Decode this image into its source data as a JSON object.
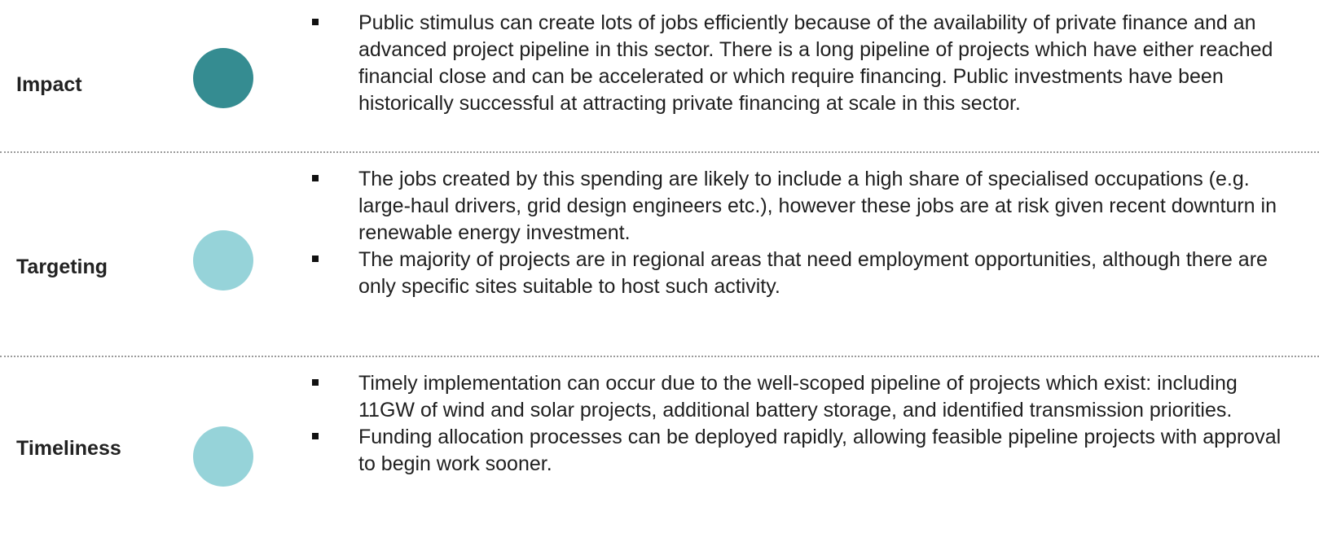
{
  "rows": [
    {
      "label": "Impact",
      "bullets": [
        "Public stimulus can create lots of jobs efficiently because of the availability of private finance and an advanced project pipeline in this sector. There is a long pipeline of projects which have either reached financial close and can be accelerated or which require financing. Public investments have been historically successful at attracting private financing at scale in this sector."
      ]
    },
    {
      "label": "Targeting",
      "bullets": [
        "The jobs created by this spending are likely to include a high share of specialised occupations (e.g. large-haul drivers, grid design engineers etc.), however these jobs are at risk given recent downturn in renewable energy investment.",
        "The majority of projects are in regional areas that need employment opportunities, although there are only specific sites suitable to host such activity."
      ]
    },
    {
      "label": "Timeliness",
      "bullets": [
        "Timely implementation can occur due to the well-scoped pipeline of projects which exist: including 11GW of wind and solar projects, additional battery storage, and identified transmission priorities.",
        "Funding allocation processes can be deployed rapidly, allowing feasible pipeline projects with approval to begin work sooner."
      ]
    }
  ]
}
